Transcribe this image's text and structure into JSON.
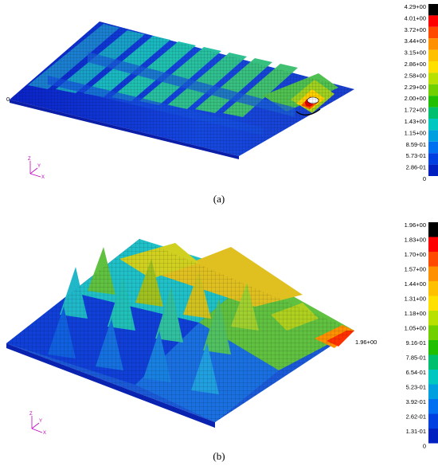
{
  "panel_a": {
    "caption": "(a)",
    "edge_label": "0",
    "legend": {
      "labels": [
        "4.29+00",
        "4.01+00",
        "3.72+00",
        "3.44+00",
        "3.15+00",
        "2.86+00",
        "2.58+00",
        "2.29+00",
        "2.00+00",
        "1.72+00",
        "1.43+00",
        "1.15+00",
        "8.59-01",
        "5.73-01",
        "2.86-01",
        "0"
      ],
      "colors": [
        "#000000",
        "#ff0000",
        "#ff4a00",
        "#ff9000",
        "#ffc000",
        "#ffe000",
        "#b8e000",
        "#70d000",
        "#20c000",
        "#00c070",
        "#00c8c0",
        "#00a0e0",
        "#0070f0",
        "#0040e0",
        "#0020c0"
      ]
    },
    "axes": {
      "z": "Z",
      "y": "Y",
      "x": "X"
    }
  },
  "panel_b": {
    "caption": "(b)",
    "peak_label": "1.96+00",
    "legend": {
      "labels": [
        "1.96+00",
        "1.83+00",
        "1.70+00",
        "1.57+00",
        "1.44+00",
        "1.31+00",
        "1.18+00",
        "1.05+00",
        "9.16-01",
        "7.85-01",
        "6.54-01",
        "5.23-01",
        "3.92-01",
        "2.62-01",
        "1.31-01",
        "0"
      ],
      "colors": [
        "#000000",
        "#ff0000",
        "#ff4a00",
        "#ff9000",
        "#ffc000",
        "#ffe000",
        "#b8e000",
        "#70d000",
        "#20c000",
        "#00c070",
        "#00c8c0",
        "#00a0e0",
        "#0070f0",
        "#0040e0",
        "#0020c0"
      ]
    },
    "axes": {
      "z": "Z",
      "y": "Y",
      "x": "X"
    }
  }
}
